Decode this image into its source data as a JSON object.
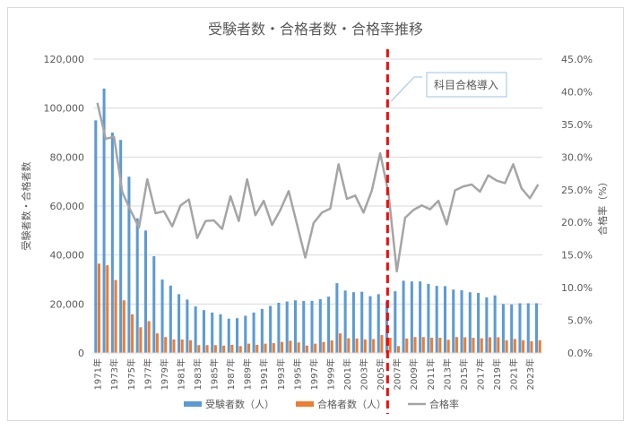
{
  "chart_data": {
    "type": "bar+line",
    "title": "受験者数・合格者数・合格率推移",
    "ylabel_left": "受験者数・合格者数",
    "ylabel_right": "合格率（%）",
    "ylim_left": [
      0,
      120000
    ],
    "ylim_right": [
      0,
      45
    ],
    "yticks_left": [
      "0",
      "20,000",
      "40,000",
      "60,000",
      "80,000",
      "100,000",
      "120,000"
    ],
    "yticks_right": [
      "0.0%",
      "5.0%",
      "10.0%",
      "15.0%",
      "20.0%",
      "25.0%",
      "30.0%",
      "35.0%",
      "40.0%",
      "45.0%"
    ],
    "grid": true,
    "legend_position": "bottom",
    "categories": [
      "1971年",
      "1972年",
      "1973年",
      "1974年",
      "1975年",
      "1976年",
      "1977年",
      "1978年",
      "1979年",
      "1980年",
      "1981年",
      "1982年",
      "1983年",
      "1984年",
      "1985年",
      "1986年",
      "1987年",
      "1988年",
      "1989年",
      "1990年",
      "1991年",
      "1992年",
      "1993年",
      "1994年",
      "1995年",
      "1996年",
      "1997年",
      "1998年",
      "1999年",
      "2000年",
      "2001年",
      "2002年",
      "2003年",
      "2004年",
      "2005年",
      "2006年",
      "2007年",
      "2008年",
      "2009年",
      "2010年",
      "2011年",
      "2012年",
      "2013年",
      "2014年",
      "2015年",
      "2016年",
      "2017年",
      "2018年",
      "2019年",
      "2020年",
      "2021年",
      "2022年",
      "2023年",
      "2024年"
    ],
    "series": [
      {
        "name": "受験者数（人）",
        "type": "bar",
        "color": "#5b9bd5",
        "values": [
          95000,
          108000,
          90000,
          87000,
          72000,
          55000,
          50000,
          39500,
          30000,
          27500,
          24000,
          21800,
          19000,
          17500,
          16500,
          15800,
          14000,
          14200,
          15200,
          16500,
          18000,
          19200,
          20500,
          21000,
          21500,
          21200,
          21300,
          22000,
          23000,
          28500,
          25500,
          24800,
          25000,
          23200,
          24000,
          21000,
          25200,
          29500,
          29200,
          29200,
          28200,
          27400,
          27300,
          25900,
          25600,
          24800,
          24500,
          22700,
          23500,
          20000,
          19800,
          20300,
          20300,
          20300
        ]
      },
      {
        "name": "合格者数（人）",
        "type": "bar",
        "color": "#ed7d31",
        "values": [
          36500,
          35800,
          29800,
          21500,
          15800,
          10500,
          13000,
          8000,
          6500,
          5500,
          5500,
          5200,
          3200,
          3200,
          3200,
          3000,
          3300,
          2800,
          3800,
          3300,
          3800,
          4000,
          4500,
          5000,
          4300,
          3000,
          3800,
          4500,
          5100,
          8000,
          6000,
          5900,
          5500,
          5700,
          7300,
          6200,
          2800,
          5900,
          6500,
          6500,
          6200,
          6200,
          5400,
          6500,
          6400,
          6200,
          6000,
          6400,
          6400,
          5200,
          5700,
          5200,
          4800,
          5200
        ]
      },
      {
        "name": "合格率",
        "type": "line",
        "axis": "right",
        "color": "#a5a5a5",
        "values": [
          38.3,
          32.8,
          33.1,
          24.6,
          21.8,
          19.2,
          26.6,
          21.4,
          21.7,
          19.4,
          22.6,
          23.5,
          17.6,
          20.2,
          20.3,
          19.0,
          24.0,
          20.2,
          26.6,
          21.1,
          23.3,
          19.6,
          21.9,
          24.8,
          19.7,
          14.6,
          19.9,
          21.5,
          22.1,
          28.9,
          23.6,
          24.1,
          21.5,
          24.9,
          30.6,
          24.5,
          12.5,
          20.7,
          21.9,
          22.6,
          22.0,
          23.3,
          19.7,
          24.9,
          25.5,
          25.8,
          24.7,
          27.2,
          26.4,
          26.0,
          28.9,
          25.2,
          23.7,
          25.8
        ]
      }
    ],
    "annotation": {
      "text": "科目合格導入",
      "at_category": "2006年",
      "line_color": "#ff0000"
    }
  }
}
